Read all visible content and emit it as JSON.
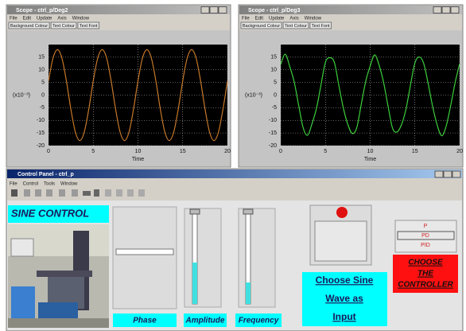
{
  "scopes": [
    {
      "title": "Scope - ctrl_p/Deg2",
      "menu": [
        "File",
        "Edit",
        "Update",
        "Axis",
        "Window"
      ],
      "buttons": [
        "Background Colour",
        "Text Colour",
        "Text Font"
      ]
    },
    {
      "title": "Scope - ctrl_p/Deg3",
      "menu": [
        "File",
        "Edit",
        "Update",
        "Axis",
        "Window"
      ],
      "buttons": [
        "Background Colour",
        "Text Colour",
        "Text Font"
      ]
    }
  ],
  "chart_data": [
    {
      "type": "line",
      "xlabel": "Time",
      "ylabel": "(x10⁻³)",
      "color": "#c8782a",
      "grid": true,
      "xlim": [
        0,
        20
      ],
      "ylim": [
        -20,
        20
      ],
      "xticks": [
        0,
        5,
        10,
        15,
        20
      ],
      "yticks": [
        -20,
        -15,
        -10,
        -5,
        0,
        5,
        10,
        15
      ],
      "x": [
        0,
        0.5,
        1,
        1.5,
        2,
        2.5,
        3,
        3.5,
        4,
        4.5,
        5,
        5.5,
        6,
        6.5,
        7,
        7.5,
        8,
        8.5,
        9,
        9.5,
        10,
        10.5,
        11,
        11.5,
        12,
        12.5,
        13,
        13.5,
        14,
        14.5,
        15,
        15.5,
        16,
        16.5,
        17,
        17.5,
        18,
        18.5,
        19,
        19.5,
        20
      ],
      "values": [
        5.6,
        14.6,
        18,
        14.6,
        5.6,
        -5.6,
        -14.6,
        -18,
        -14.6,
        -5.6,
        5.6,
        14.6,
        18,
        14.6,
        5.6,
        -5.6,
        -14.6,
        -18,
        -14.6,
        -5.6,
        5.6,
        14.6,
        18,
        14.6,
        5.6,
        -5.6,
        -14.6,
        -18,
        -14.6,
        -5.6,
        5.6,
        14.6,
        18,
        14.6,
        5.6,
        -5.6,
        -14.6,
        -18,
        -14.6,
        -5.6,
        5.6
      ]
    },
    {
      "type": "line",
      "xlabel": "Time",
      "ylabel": "(x10⁻³)",
      "color": "#3ccf3c",
      "grid": true,
      "xlim": [
        0,
        20
      ],
      "ylim": [
        -20,
        20
      ],
      "xticks": [
        0,
        5,
        10,
        15,
        20
      ],
      "yticks": [
        -20,
        -15,
        -10,
        -5,
        0,
        5,
        10,
        15
      ],
      "x": [
        0,
        0.5,
        1,
        1.5,
        2,
        2.5,
        3,
        3.5,
        4,
        4.5,
        5,
        5.5,
        6,
        6.5,
        7,
        7.5,
        8,
        8.5,
        9,
        9.5,
        10,
        10.5,
        11,
        11.5,
        12,
        12.5,
        13,
        13.5,
        14,
        14.5,
        15,
        15.5,
        16,
        16.5,
        17,
        17.5,
        18,
        18.5,
        19,
        19.5,
        20
      ],
      "values": [
        12.1,
        16.2,
        11.4,
        5.3,
        -3.9,
        -12.8,
        -15.9,
        -11.3,
        -5.2,
        4.0,
        13.0,
        14.8,
        12.9,
        3.8,
        -5.1,
        -11.6,
        -15.2,
        -12.9,
        -3.7,
        5.4,
        11.5,
        15.9,
        11.8,
        5.0,
        -4.4,
        -13.1,
        -14.6,
        -11.7,
        -5.6,
        3.9,
        12.7,
        15.1,
        12.3,
        4.2,
        -4.8,
        -12.0,
        -16.1,
        -12.2,
        -4.1,
        5.0,
        12.4
      ]
    }
  ],
  "control_panel": {
    "title": "Control Panel - ctrl_p",
    "menu": [
      "File",
      "Control",
      "Tools",
      "Window"
    ],
    "heading": "SINE CONTROL",
    "sliders": [
      "Phase",
      "Amplitude",
      "Frequency"
    ],
    "input_button": [
      "Choose Sine",
      "Wave as",
      "Input"
    ],
    "controllers": [
      "P",
      "PD",
      "PID"
    ],
    "controller_label": [
      "CHOOSE",
      "THE",
      "CONTROLLER"
    ]
  }
}
